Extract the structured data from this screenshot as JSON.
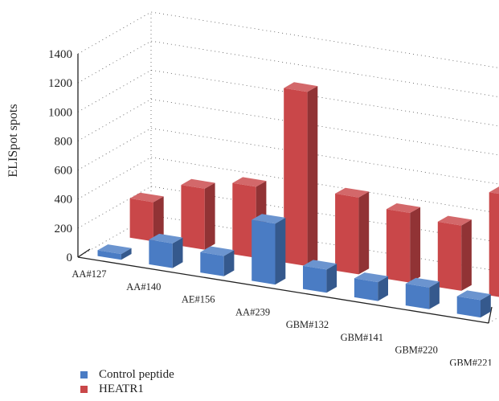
{
  "chart_data": {
    "type": "bar",
    "title": "",
    "xlabel": "",
    "ylabel": "ELISpot spots",
    "ylim": [
      0,
      1400
    ],
    "yticks": [
      0,
      200,
      400,
      600,
      800,
      1000,
      1200,
      1400
    ],
    "categories": [
      "AA#127",
      "AA#140",
      "AE#156",
      "AA#239",
      "GBM#132",
      "GBM#141",
      "GBM#220",
      "GBM#221"
    ],
    "series": [
      {
        "name": "Control peptide",
        "color": "#4a7cc4",
        "values": [
          40,
          170,
          140,
          420,
          160,
          130,
          150,
          120
        ]
      },
      {
        "name": "HEATR1",
        "color": "#c94749",
        "values": [
          270,
          420,
          490,
          1200,
          530,
          480,
          450,
          710
        ]
      }
    ],
    "legend_position": "bottom-left",
    "grid": true,
    "style": "3d-clustered"
  }
}
